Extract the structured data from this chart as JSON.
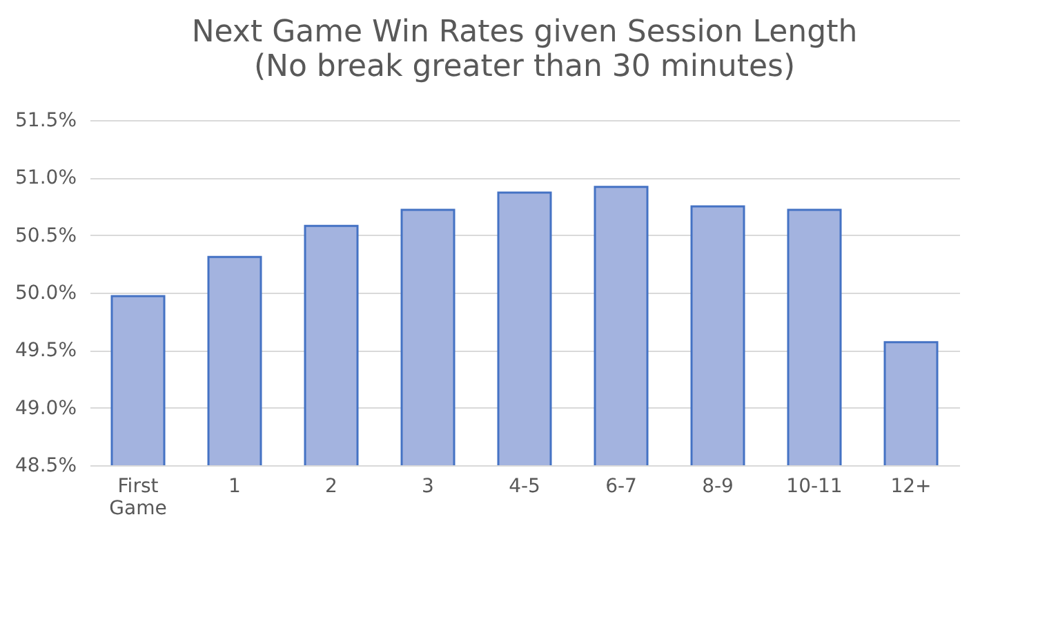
{
  "chart_data": {
    "type": "bar",
    "title": "Next Game Win Rates given Session Length",
    "subtitle": "(No break greater than 30 minutes)",
    "categories": [
      "First Game",
      "1",
      "2",
      "3",
      "4-5",
      "6-7",
      "8-9",
      "10-11",
      "12+"
    ],
    "values": [
      49.97,
      50.31,
      50.58,
      50.72,
      50.87,
      50.92,
      50.75,
      50.72,
      49.57
    ],
    "color": "#a3b3df",
    "ylim": [
      48.5,
      51.5
    ],
    "yticks": [
      {
        "value": 48.5,
        "label": "48.5%"
      },
      {
        "value": 49.0,
        "label": "49.0%"
      },
      {
        "value": 49.5,
        "label": "49.5%"
      },
      {
        "value": 50.0,
        "label": "50.0%"
      },
      {
        "value": 50.5,
        "label": "50.5%"
      },
      {
        "value": 51.0,
        "label": "51.0%"
      },
      {
        "value": 51.5,
        "label": "51.5%"
      }
    ],
    "grid": "y"
  }
}
